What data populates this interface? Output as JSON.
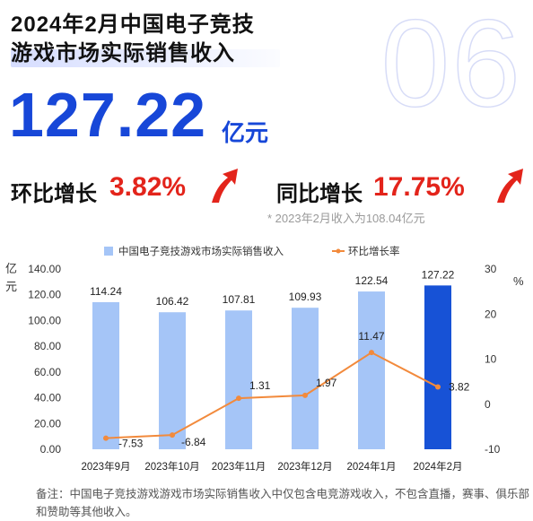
{
  "header": {
    "bg_number": "06",
    "title_line1": "2024年2月中国电子竞技",
    "title_line2": "游戏市场实际销售收入",
    "value": "127.22",
    "unit": "亿元",
    "mom_label": "环比增长",
    "mom_value": "3.82%",
    "yoy_label": "同比增长",
    "yoy_value": "17.75%",
    "prior_note": "* 2023年2月收入为108.04亿元"
  },
  "colors": {
    "bar": "#a5c5f7",
    "bar_highlight": "#1752d6",
    "line": "#f28a3c",
    "accent_blue": "#1747d8",
    "accent_red": "#e3241b"
  },
  "chart_data": {
    "type": "bar+line",
    "legend": [
      "中国电子竞技游戏市场实际销售收入",
      "环比增长率"
    ],
    "legend_position": "top-center",
    "categories": [
      "2023年9月",
      "2023年10月",
      "2023年11月",
      "2023年12月",
      "2024年1月",
      "2024年2月"
    ],
    "series": [
      {
        "name": "中国电子竞技游戏市场实际销售收入",
        "type": "bar",
        "axis": "left",
        "values": [
          114.24,
          106.42,
          107.81,
          109.93,
          122.54,
          127.22
        ],
        "labels": [
          "114.24",
          "106.42",
          "107.81",
          "109.93",
          "122.54",
          "127.22"
        ]
      },
      {
        "name": "环比增长率",
        "type": "line",
        "axis": "right",
        "values": [
          -7.53,
          -6.84,
          1.31,
          1.97,
          11.47,
          3.82
        ],
        "labels": [
          "-7.53",
          "-6.84",
          "1.31",
          "1.97",
          "11.47",
          "3.82"
        ]
      }
    ],
    "left_axis": {
      "label": "亿元",
      "range": [
        0,
        140
      ],
      "ticks": [
        "0.00",
        "20.00",
        "40.00",
        "60.00",
        "80.00",
        "100.00",
        "120.00",
        "140.00"
      ]
    },
    "right_axis": {
      "label": "%",
      "range": [
        -10,
        30
      ],
      "ticks": [
        "-10",
        "0",
        "10",
        "20",
        "30"
      ]
    },
    "grid": false
  },
  "footnote": "备注：中国电子竞技游戏游戏市场实际销售收入中仅包含电竞游戏收入，不包含直播，赛事、俱乐部和赞助等其他收入。"
}
